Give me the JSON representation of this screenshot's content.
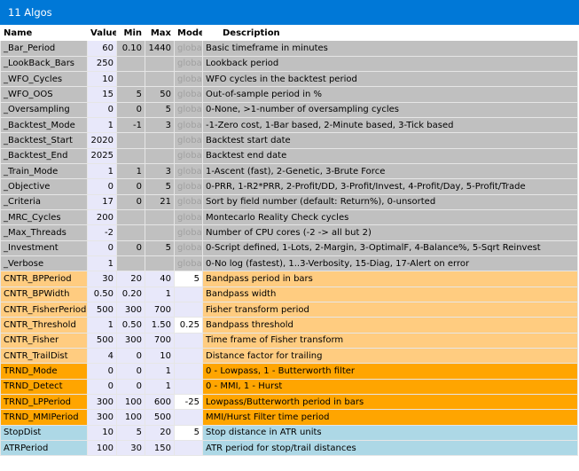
{
  "window": {
    "title": "11 Algos"
  },
  "colors": {
    "titlebar": "#0078d7",
    "global": "#c0c0c0",
    "value": "#e8e8fa",
    "cntr": "#ffcc80",
    "trnd": "#ffa500",
    "stop": "#add8e6"
  },
  "headers": {
    "name": "Name",
    "value": "Value",
    "min": "Min",
    "max": "Max",
    "mode": "Mode",
    "description": "Description"
  },
  "rows": [
    {
      "name": "_Bar_Period",
      "value": "60",
      "min": "0.10",
      "max": "1440",
      "mode": "global",
      "description": "Basic timeframe in minutes",
      "group": "g"
    },
    {
      "name": "_LookBack_Bars",
      "value": "250",
      "min": "",
      "max": "",
      "mode": "global",
      "description": "Lookback period",
      "group": "g"
    },
    {
      "name": "_WFO_Cycles",
      "value": "10",
      "min": "",
      "max": "",
      "mode": "global",
      "description": "WFO cycles in the backtest period",
      "group": "g"
    },
    {
      "name": "_WFO_OOS",
      "value": "15",
      "min": "5",
      "max": "50",
      "mode": "global",
      "description": "Out-of-sample period in %",
      "group": "g"
    },
    {
      "name": "_Oversampling",
      "value": "0",
      "min": "0",
      "max": "5",
      "mode": "global",
      "description": "0-None, >1-number of oversampling cycles",
      "group": "g"
    },
    {
      "name": "_Backtest_Mode",
      "value": "1",
      "min": "-1",
      "max": "3",
      "mode": "global",
      "description": "-1-Zero cost, 1-Bar based, 2-Minute based, 3-Tick based",
      "group": "g"
    },
    {
      "name": "_Backtest_Start",
      "value": "2020",
      "min": "",
      "max": "",
      "mode": "global",
      "description": "Backtest start date",
      "group": "g"
    },
    {
      "name": "_Backtest_End",
      "value": "2025",
      "min": "",
      "max": "",
      "mode": "global",
      "description": "Backtest end date",
      "group": "g"
    },
    {
      "name": "_Train_Mode",
      "value": "1",
      "min": "1",
      "max": "3",
      "mode": "global",
      "description": "1-Ascent (fast), 2-Genetic, 3-Brute Force",
      "group": "g"
    },
    {
      "name": "_Objective",
      "value": "0",
      "min": "0",
      "max": "5",
      "mode": "global",
      "description": "0-PRR, 1-R2*PRR, 2-Profit/DD, 3-Profit/Invest, 4-Profit/Day, 5-Profit/Trade",
      "group": "g"
    },
    {
      "name": "_Criteria",
      "value": "17",
      "min": "0",
      "max": "21",
      "mode": "global",
      "description": "Sort by field number (default: Return%), 0-unsorted",
      "group": "g"
    },
    {
      "name": "_MRC_Cycles",
      "value": "200",
      "min": "",
      "max": "",
      "mode": "global",
      "description": "Montecarlo Reality Check cycles",
      "group": "g"
    },
    {
      "name": "_Max_Threads",
      "value": "-2",
      "min": "",
      "max": "",
      "mode": "global",
      "description": "Number of CPU cores (-2 -> all but 2)",
      "group": "g"
    },
    {
      "name": "_Investment",
      "value": "0",
      "min": "0",
      "max": "5",
      "mode": "global",
      "description": "0-Script defined, 1-Lots, 2-Margin, 3-OptimalF, 4-Balance%, 5-Sqrt Reinvest",
      "group": "g"
    },
    {
      "name": "_Verbose",
      "value": "1",
      "min": "",
      "max": "",
      "mode": "global",
      "description": "0-No log (fastest), 1..3-Verbosity, 15-Diag, 17-Alert on error",
      "group": "g"
    },
    {
      "name": "CNTR_BPPeriod",
      "value": "30",
      "min": "20",
      "max": "40",
      "mode": "5",
      "description": "Bandpass period in bars",
      "group": "lo"
    },
    {
      "name": "CNTR_BPWidth",
      "value": "0.50",
      "min": "0.20",
      "max": "1",
      "mode": "",
      "description": "Bandpass width",
      "group": "lo"
    },
    {
      "name": "CNTR_FisherPeriod",
      "value": "500",
      "min": "300",
      "max": "700",
      "mode": "",
      "description": "Fisher transform period",
      "group": "lo"
    },
    {
      "name": "CNTR_Threshold",
      "value": "1",
      "min": "0.50",
      "max": "1.50",
      "mode": "0.25",
      "description": "Bandpass threshold",
      "group": "lo"
    },
    {
      "name": "CNTR_Fisher",
      "value": "500",
      "min": "300",
      "max": "700",
      "mode": "",
      "description": "Time frame of Fisher transform",
      "group": "lo"
    },
    {
      "name": "CNTR_TrailDist",
      "value": "4",
      "min": "0",
      "max": "10",
      "mode": "",
      "description": "Distance factor for trailing",
      "group": "lo"
    },
    {
      "name": "TRND_Mode",
      "value": "0",
      "min": "0",
      "max": "1",
      "mode": "",
      "description": "0 - Lowpass, 1 - Butterworth filter",
      "group": "do"
    },
    {
      "name": "TRND_Detect",
      "value": "0",
      "min": "0",
      "max": "1",
      "mode": "",
      "description": "0 - MMI, 1 - Hurst",
      "group": "do"
    },
    {
      "name": "TRND_LPPeriod",
      "value": "300",
      "min": "100",
      "max": "600",
      "mode": "-25",
      "description": "Lowpass/Butterworth period in bars",
      "group": "do"
    },
    {
      "name": "TRND_MMIPeriod",
      "value": "300",
      "min": "100",
      "max": "500",
      "mode": "",
      "description": "MMI/Hurst Filter time period",
      "group": "do"
    },
    {
      "name": "StopDist",
      "value": "10",
      "min": "5",
      "max": "20",
      "mode": "5",
      "description": "Stop distance in ATR units",
      "group": "lb"
    },
    {
      "name": "ATRPeriod",
      "value": "100",
      "min": "30",
      "max": "150",
      "mode": "",
      "description": "ATR period for stop/trail distances",
      "group": "lb"
    }
  ]
}
